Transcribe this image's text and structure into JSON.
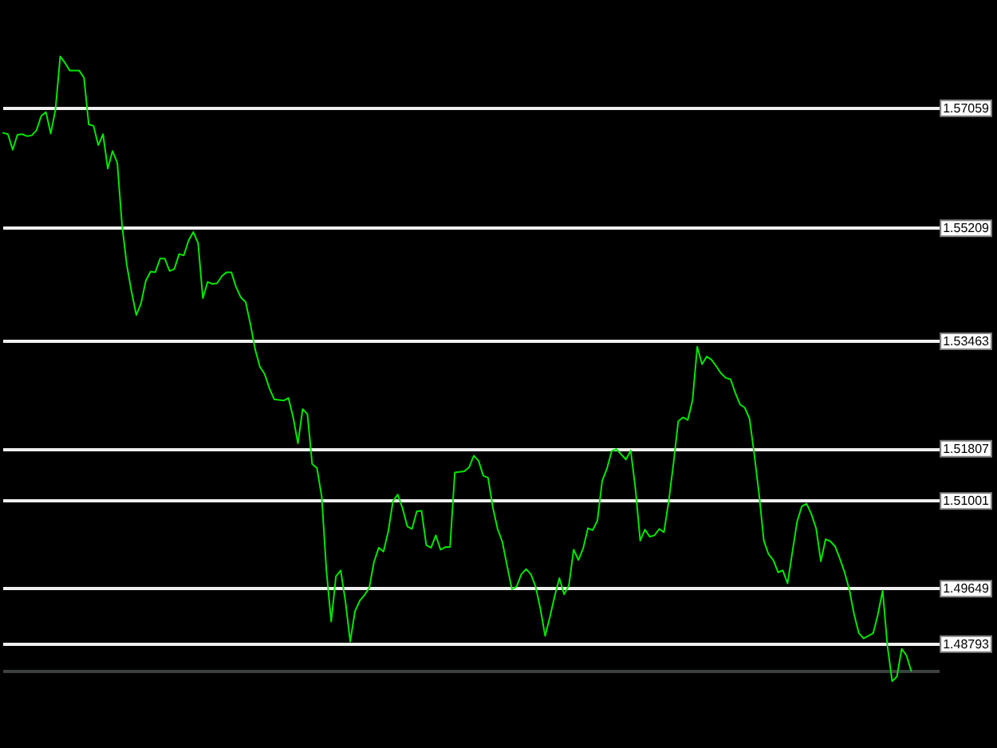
{
  "chart_data": {
    "type": "line",
    "categories": [
      null,
      null,
      null,
      null,
      null,
      null,
      null,
      null,
      null,
      null,
      null,
      null,
      null,
      null,
      null,
      null,
      null,
      null,
      null,
      null,
      null,
      null,
      null,
      null,
      null,
      null,
      null,
      null,
      null,
      null,
      null,
      null,
      null,
      null,
      null,
      null,
      null,
      null,
      null,
      null,
      null,
      null,
      null,
      null,
      null,
      null,
      null,
      null,
      null,
      null,
      null,
      null,
      null,
      null,
      null,
      null,
      null,
      null,
      null,
      null,
      null,
      null,
      null,
      null,
      null,
      null,
      null,
      null,
      null,
      null,
      null,
      null,
      null,
      null,
      null,
      null,
      null,
      null,
      null,
      null,
      null,
      null,
      null,
      null,
      null,
      null,
      null,
      null,
      null,
      null,
      null,
      null,
      null,
      null,
      null,
      null,
      null,
      null,
      null,
      null,
      null,
      null,
      null,
      null,
      null,
      null,
      null,
      null,
      null,
      null,
      null,
      null,
      null,
      null,
      null,
      null,
      null,
      null,
      null,
      null,
      null,
      null,
      null,
      null,
      null,
      null,
      null,
      null,
      null,
      null,
      null,
      null,
      null,
      null,
      null,
      null,
      null,
      null,
      null,
      null,
      null,
      null,
      null,
      null,
      null,
      null,
      null,
      null,
      null,
      null,
      null,
      null,
      null,
      null,
      null,
      null,
      null,
      null,
      null,
      null,
      null,
      null,
      null,
      null,
      null,
      null,
      null,
      null,
      null,
      null,
      null,
      null,
      null,
      null,
      null,
      null,
      null,
      null,
      null,
      null,
      null,
      null,
      null,
      null,
      null,
      null,
      null,
      null,
      null,
      null,
      null,
      null
    ],
    "values": [
      1.5668,
      1.5666,
      1.5642,
      1.5665,
      1.5666,
      1.5663,
      1.5664,
      1.5672,
      1.5694,
      1.57,
      1.5667,
      1.5704,
      1.5786,
      1.5776,
      1.5764,
      1.5764,
      1.5764,
      1.5753,
      1.5681,
      1.5679,
      1.5649,
      1.5666,
      1.5613,
      1.564,
      1.5622,
      1.5526,
      1.5464,
      1.5423,
      1.5387,
      1.5405,
      1.544,
      1.5454,
      1.5453,
      1.5474,
      1.5474,
      1.5455,
      1.5458,
      1.5481,
      1.5479,
      1.5502,
      1.5515,
      1.5498,
      1.5413,
      1.5438,
      1.5435,
      1.5436,
      1.5447,
      1.5453,
      1.5453,
      1.543,
      1.5414,
      1.5407,
      1.5373,
      1.5334,
      1.5307,
      1.5296,
      1.5274,
      1.5257,
      1.5256,
      1.5255,
      1.5259,
      1.5229,
      1.5189,
      1.5242,
      1.5234,
      1.5157,
      1.5151,
      1.5107,
      1.4992,
      1.4914,
      1.4984,
      1.4993,
      1.4945,
      1.4883,
      1.493,
      1.4946,
      1.4955,
      1.4966,
      1.5006,
      1.5028,
      1.5022,
      1.5053,
      1.51,
      1.511,
      1.5089,
      1.5061,
      1.5057,
      1.5084,
      1.5085,
      1.5032,
      1.5028,
      1.5047,
      1.5025,
      1.5029,
      1.5029,
      1.5144,
      1.5145,
      1.5146,
      1.5152,
      1.517,
      1.5162,
      1.5139,
      1.5136,
      1.509,
      1.5057,
      1.5037,
      1.5,
      1.4964,
      1.4968,
      1.4987,
      1.4995,
      1.4987,
      1.4968,
      1.4934,
      1.4892,
      1.4921,
      1.4953,
      1.4981,
      1.4956,
      1.497,
      1.5025,
      1.5009,
      1.5027,
      1.5058,
      1.5055,
      1.507,
      1.5131,
      1.515,
      1.5177,
      1.518,
      1.5172,
      1.5164,
      1.5178,
      1.5119,
      1.5039,
      1.5056,
      1.5045,
      1.5047,
      1.5057,
      1.5052,
      1.51,
      1.5158,
      1.5223,
      1.5229,
      1.5225,
      1.5255,
      1.5338,
      1.5311,
      1.5323,
      1.5318,
      1.5308,
      1.5297,
      1.529,
      1.5288,
      1.5267,
      1.5249,
      1.5244,
      1.5227,
      1.5172,
      1.5111,
      1.5039,
      1.5018,
      1.5009,
      1.499,
      1.4993,
      1.4973,
      1.5021,
      1.5068,
      1.5092,
      1.5096,
      1.508,
      1.5058,
      1.5007,
      1.5041,
      1.5038,
      1.503,
      1.5011,
      1.499,
      1.4963,
      1.4925,
      1.4896,
      1.4888,
      1.4892,
      1.4896,
      1.4925,
      1.4962,
      1.4877,
      1.4822,
      1.4829,
      1.4872,
      1.4862,
      1.4838
    ],
    "color": "#00e600",
    "ylim": [
      1.4719,
      1.5873
    ],
    "yticks": [
      1.48793,
      1.49649,
      1.51001,
      1.51807,
      1.53463,
      1.55209,
      1.57059
    ],
    "grid": "y",
    "tick_labels": "y",
    "line_style": "solid",
    "ref_lines": [
      {
        "axis": "y",
        "value": 1.4838,
        "color": "#3c4040"
      }
    ]
  }
}
